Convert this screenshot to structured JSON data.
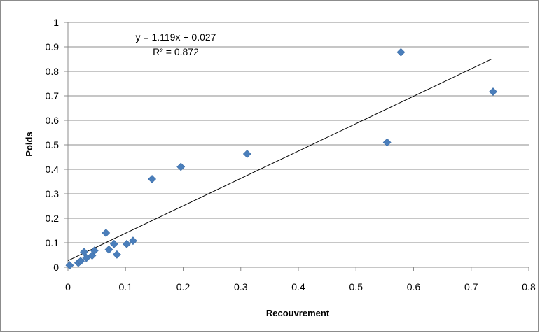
{
  "chart_data": {
    "type": "scatter",
    "title": "",
    "xlabel": "Recouvrement",
    "ylabel": "Poids",
    "xlim": [
      0,
      0.8
    ],
    "ylim": [
      0,
      1
    ],
    "x_ticks": [
      "0",
      "0.1",
      "0.2",
      "0.3",
      "0.4",
      "0.5",
      "0.6",
      "0.7",
      "0.8"
    ],
    "y_ticks": [
      "0",
      "0.1",
      "0.2",
      "0.3",
      "0.4",
      "0.5",
      "0.6",
      "0.7",
      "0.8",
      "0.9",
      "1"
    ],
    "grid": "horizontal",
    "legend": "none",
    "marker": "diamond",
    "marker_color": "#4a7ebb",
    "points": [
      {
        "x": 0.003,
        "y": 0.008
      },
      {
        "x": 0.018,
        "y": 0.018
      },
      {
        "x": 0.022,
        "y": 0.025
      },
      {
        "x": 0.028,
        "y": 0.062
      },
      {
        "x": 0.032,
        "y": 0.038
      },
      {
        "x": 0.042,
        "y": 0.048
      },
      {
        "x": 0.046,
        "y": 0.068
      },
      {
        "x": 0.066,
        "y": 0.14
      },
      {
        "x": 0.071,
        "y": 0.072
      },
      {
        "x": 0.08,
        "y": 0.095
      },
      {
        "x": 0.085,
        "y": 0.052
      },
      {
        "x": 0.102,
        "y": 0.095
      },
      {
        "x": 0.113,
        "y": 0.108
      },
      {
        "x": 0.146,
        "y": 0.36
      },
      {
        "x": 0.196,
        "y": 0.41
      },
      {
        "x": 0.311,
        "y": 0.463
      },
      {
        "x": 0.554,
        "y": 0.51
      },
      {
        "x": 0.578,
        "y": 0.878
      },
      {
        "x": 0.738,
        "y": 0.717
      }
    ],
    "trendline": {
      "slope": 1.119,
      "intercept": 0.027,
      "x_range": [
        0,
        0.735
      ],
      "color": "#000000",
      "equation_label": "y = 1.119x + 0.027",
      "r2_label": "R² = 0.872"
    }
  }
}
